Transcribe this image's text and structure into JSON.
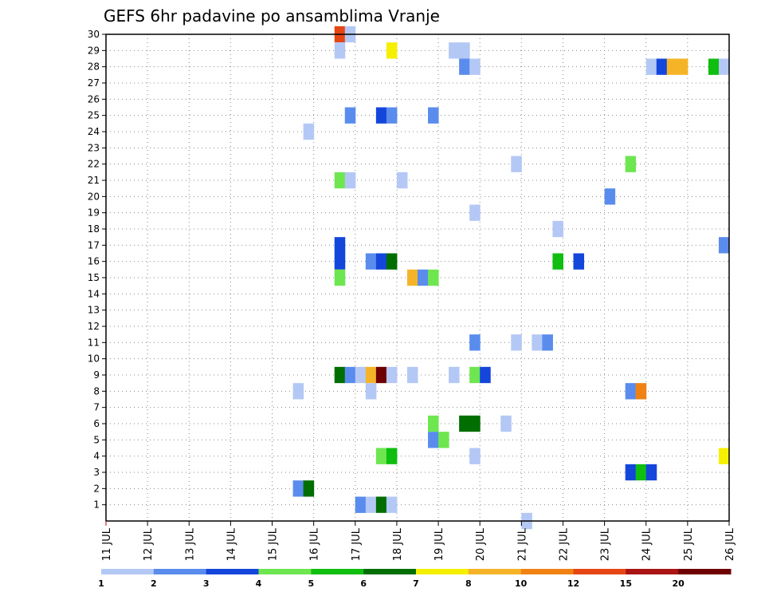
{
  "chart_data": {
    "type": "heatmap",
    "title": "GEFS 6hr padavine po ansamblima Vranje",
    "x_tick_labels": [
      "11 JUL",
      "12 JUL",
      "13 JUL",
      "14 JUL",
      "15 JUL",
      "16 JUL",
      "17 JUL",
      "18 JUL",
      "19 JUL",
      "20 JUL",
      "21 JUL",
      "22 JUL",
      "23 JUL",
      "24 JUL",
      "25 JUL",
      "26 JUL"
    ],
    "x_range_days": [
      11,
      26
    ],
    "y_tick_labels": [
      1,
      2,
      3,
      4,
      5,
      6,
      7,
      8,
      9,
      10,
      11,
      12,
      13,
      14,
      15,
      16,
      17,
      18,
      19,
      20,
      21,
      22,
      23,
      24,
      25,
      26,
      27,
      28,
      29,
      30
    ],
    "y_range": [
      0,
      30
    ],
    "grid": true,
    "colorbar": {
      "placement": "bottom",
      "labels": [
        "1",
        "2",
        "3",
        "4",
        "5",
        "6",
        "7",
        "8",
        "10",
        "12",
        "15",
        "20"
      ],
      "colors": [
        "#b4c8f5",
        "#5a8ced",
        "#1446dc",
        "#6ee650",
        "#0fbe0f",
        "#006e00",
        "#f5f000",
        "#f5b428",
        "#f08214",
        "#e64614",
        "#aa1414",
        "#6e0000"
      ]
    },
    "cells": [
      {
        "x": 17.0,
        "y": 1,
        "c": 4
      },
      {
        "x": 17.0,
        "y": 1,
        "c": 1
      },
      {
        "x": 16.5,
        "y": 30,
        "c": 10
      },
      {
        "x": 16.5,
        "y": 29,
        "c": 1
      },
      {
        "x": 16.75,
        "y": 30,
        "c": 1
      },
      {
        "x": 17.75,
        "y": 29,
        "c": 7
      },
      {
        "x": 19.25,
        "y": 29,
        "c": 1
      },
      {
        "x": 19.5,
        "y": 29,
        "c": 1
      },
      {
        "x": 19.5,
        "y": 28,
        "c": 2
      },
      {
        "x": 19.75,
        "y": 28,
        "c": 1
      },
      {
        "x": 24.0,
        "y": 28,
        "c": 1
      },
      {
        "x": 24.25,
        "y": 28,
        "c": 3
      },
      {
        "x": 24.5,
        "y": 28,
        "c": 8
      },
      {
        "x": 24.75,
        "y": 28,
        "c": 8
      },
      {
        "x": 25.5,
        "y": 28,
        "c": 5
      },
      {
        "x": 25.75,
        "y": 28,
        "c": 1
      },
      {
        "x": 16.75,
        "y": 25,
        "c": 2
      },
      {
        "x": 17.5,
        "y": 25,
        "c": 3
      },
      {
        "x": 17.75,
        "y": 25,
        "c": 2
      },
      {
        "x": 18.75,
        "y": 25,
        "c": 2
      },
      {
        "x": 15.75,
        "y": 24,
        "c": 1
      },
      {
        "x": 20.75,
        "y": 22,
        "c": 1
      },
      {
        "x": 23.5,
        "y": 22,
        "c": 4
      },
      {
        "x": 16.5,
        "y": 21,
        "c": 4
      },
      {
        "x": 16.75,
        "y": 21,
        "c": 1
      },
      {
        "x": 18.0,
        "y": 21,
        "c": 1
      },
      {
        "x": 23.0,
        "y": 20,
        "c": 2
      },
      {
        "x": 19.75,
        "y": 19,
        "c": 1
      },
      {
        "x": 21.75,
        "y": 18,
        "c": 1
      },
      {
        "x": 25.75,
        "y": 17,
        "c": 2
      },
      {
        "x": 16.5,
        "y": 17,
        "c": 3
      },
      {
        "x": 16.5,
        "y": 16,
        "c": 3
      },
      {
        "x": 17.25,
        "y": 16,
        "c": 2
      },
      {
        "x": 17.5,
        "y": 16,
        "c": 3
      },
      {
        "x": 17.75,
        "y": 16,
        "c": 6
      },
      {
        "x": 21.75,
        "y": 16,
        "c": 5
      },
      {
        "x": 22.25,
        "y": 16,
        "c": 3
      },
      {
        "x": 16.5,
        "y": 15,
        "c": 4
      },
      {
        "x": 18.25,
        "y": 15,
        "c": 8
      },
      {
        "x": 18.5,
        "y": 15,
        "c": 2
      },
      {
        "x": 18.75,
        "y": 15,
        "c": 4
      },
      {
        "x": 19.75,
        "y": 11,
        "c": 2
      },
      {
        "x": 20.75,
        "y": 11,
        "c": 1
      },
      {
        "x": 21.25,
        "y": 11,
        "c": 1
      },
      {
        "x": 21.5,
        "y": 11,
        "c": 2
      },
      {
        "x": 16.5,
        "y": 9,
        "c": 6
      },
      {
        "x": 16.75,
        "y": 9,
        "c": 2
      },
      {
        "x": 17.0,
        "y": 9,
        "c": 1
      },
      {
        "x": 17.25,
        "y": 9,
        "c": 8
      },
      {
        "x": 17.5,
        "y": 9,
        "c": 12
      },
      {
        "x": 17.75,
        "y": 9,
        "c": 1
      },
      {
        "x": 18.25,
        "y": 9,
        "c": 1
      },
      {
        "x": 19.25,
        "y": 9,
        "c": 1
      },
      {
        "x": 19.75,
        "y": 9,
        "c": 4
      },
      {
        "x": 20.0,
        "y": 9,
        "c": 3
      },
      {
        "x": 15.5,
        "y": 8,
        "c": 1
      },
      {
        "x": 17.25,
        "y": 8,
        "c": 1
      },
      {
        "x": 23.5,
        "y": 8,
        "c": 2
      },
      {
        "x": 23.75,
        "y": 8,
        "c": 9
      },
      {
        "x": 18.75,
        "y": 6,
        "c": 4
      },
      {
        "x": 19.5,
        "y": 6,
        "c": 6
      },
      {
        "x": 19.75,
        "y": 6,
        "c": 6
      },
      {
        "x": 20.5,
        "y": 6,
        "c": 1
      },
      {
        "x": 18.75,
        "y": 5,
        "c": 2
      },
      {
        "x": 19.0,
        "y": 5,
        "c": 4
      },
      {
        "x": 17.5,
        "y": 4,
        "c": 4
      },
      {
        "x": 17.75,
        "y": 4,
        "c": 5
      },
      {
        "x": 19.75,
        "y": 4,
        "c": 1
      },
      {
        "x": 25.75,
        "y": 4,
        "c": 7
      },
      {
        "x": 23.5,
        "y": 3,
        "c": 3
      },
      {
        "x": 23.75,
        "y": 3,
        "c": 5
      },
      {
        "x": 24.0,
        "y": 3,
        "c": 3
      },
      {
        "x": 15.5,
        "y": 2,
        "c": 2
      },
      {
        "x": 15.75,
        "y": 2,
        "c": 6
      },
      {
        "x": 17.0,
        "y": 1,
        "c": 2
      },
      {
        "x": 17.25,
        "y": 1,
        "c": 1
      },
      {
        "x": 17.5,
        "y": 1,
        "c": 6
      },
      {
        "x": 17.75,
        "y": 1,
        "c": 1
      },
      {
        "x": 21.0,
        "y": 0,
        "c": 1
      }
    ]
  }
}
